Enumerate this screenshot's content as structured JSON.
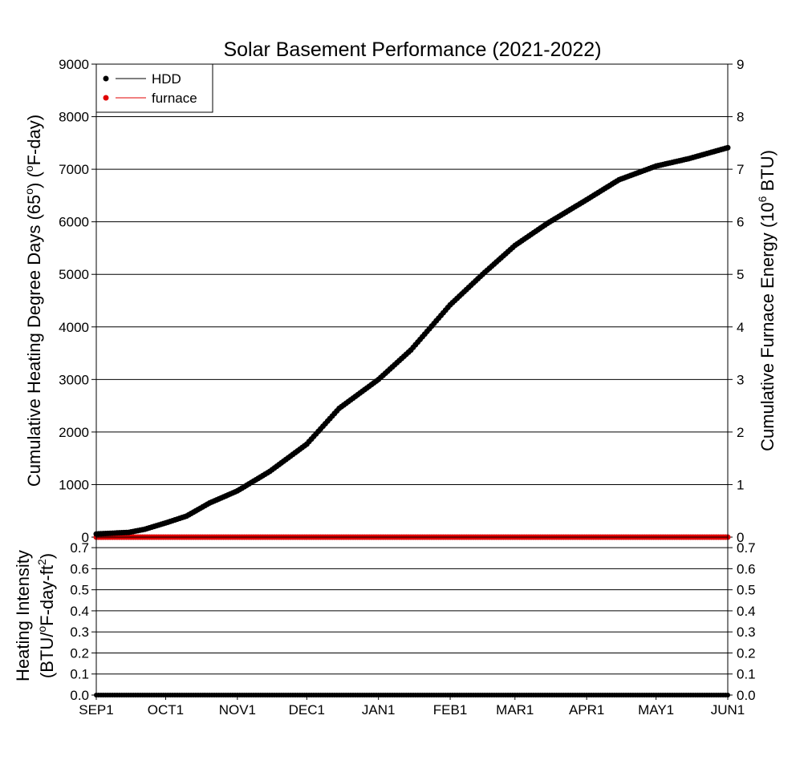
{
  "chart_data": [
    {
      "type": "line",
      "title": "Solar Basement Performance (2021-2022)",
      "ylabel_left": "Cumulative Heating Degree Days (65°) (°F-day)",
      "ylabel_right": "Cumulative Furnace Energy (10^6 BTU)",
      "ylim_left": [
        0,
        9000
      ],
      "ylim_right": [
        0,
        9
      ],
      "yticks_left": [
        "0",
        "1000",
        "2000",
        "3000",
        "4000",
        "5000",
        "6000",
        "7000",
        "8000",
        "9000"
      ],
      "yticks_right": [
        "0",
        "1",
        "2",
        "3",
        "4",
        "5",
        "6",
        "7",
        "8",
        "9"
      ],
      "grid": true,
      "legend_position": "top-left",
      "x_tick_labels": [
        "SEP1",
        "OCT1",
        "NOV1",
        "DEC1",
        "JAN1",
        "FEB1",
        "MAR1",
        "APR1",
        "MAY1",
        "JUN1"
      ],
      "series": [
        {
          "name": "HDD",
          "color": "#000000",
          "axis": "left",
          "x": [
            "2021-09-01",
            "2021-09-15",
            "2021-09-22",
            "2021-10-01",
            "2021-10-10",
            "2021-10-20",
            "2021-11-01",
            "2021-11-15",
            "2021-12-01",
            "2021-12-15",
            "2022-01-01",
            "2022-01-15",
            "2022-02-01",
            "2022-02-15",
            "2022-03-01",
            "2022-03-15",
            "2022-04-01",
            "2022-04-15",
            "2022-05-01",
            "2022-05-15",
            "2022-06-01"
          ],
          "values": [
            60,
            90,
            150,
            270,
            400,
            650,
            880,
            1250,
            1770,
            2450,
            3000,
            3560,
            4420,
            5000,
            5550,
            5970,
            6420,
            6800,
            7060,
            7200,
            7410
          ]
        },
        {
          "name": "furnace",
          "color": "#e00000",
          "axis": "right",
          "x": [
            "2021-09-01",
            "2022-06-01"
          ],
          "values": [
            0,
            0
          ]
        }
      ]
    },
    {
      "type": "line",
      "ylabel": "Heating Intensity (BTU/°F-day-ft²)",
      "ylim": [
        0,
        0.75
      ],
      "yticks": [
        "0.0",
        "0.1",
        "0.2",
        "0.3",
        "0.4",
        "0.5",
        "0.6",
        "0.7"
      ],
      "grid": true,
      "x_tick_labels": [
        "SEP1",
        "OCT1",
        "NOV1",
        "DEC1",
        "JAN1",
        "FEB1",
        "MAR1",
        "APR1",
        "MAY1",
        "JUN1"
      ],
      "series": [
        {
          "color": "#000000",
          "x": [
            "2021-09-01",
            "2022-06-01"
          ],
          "values": [
            0,
            0
          ]
        }
      ]
    }
  ]
}
